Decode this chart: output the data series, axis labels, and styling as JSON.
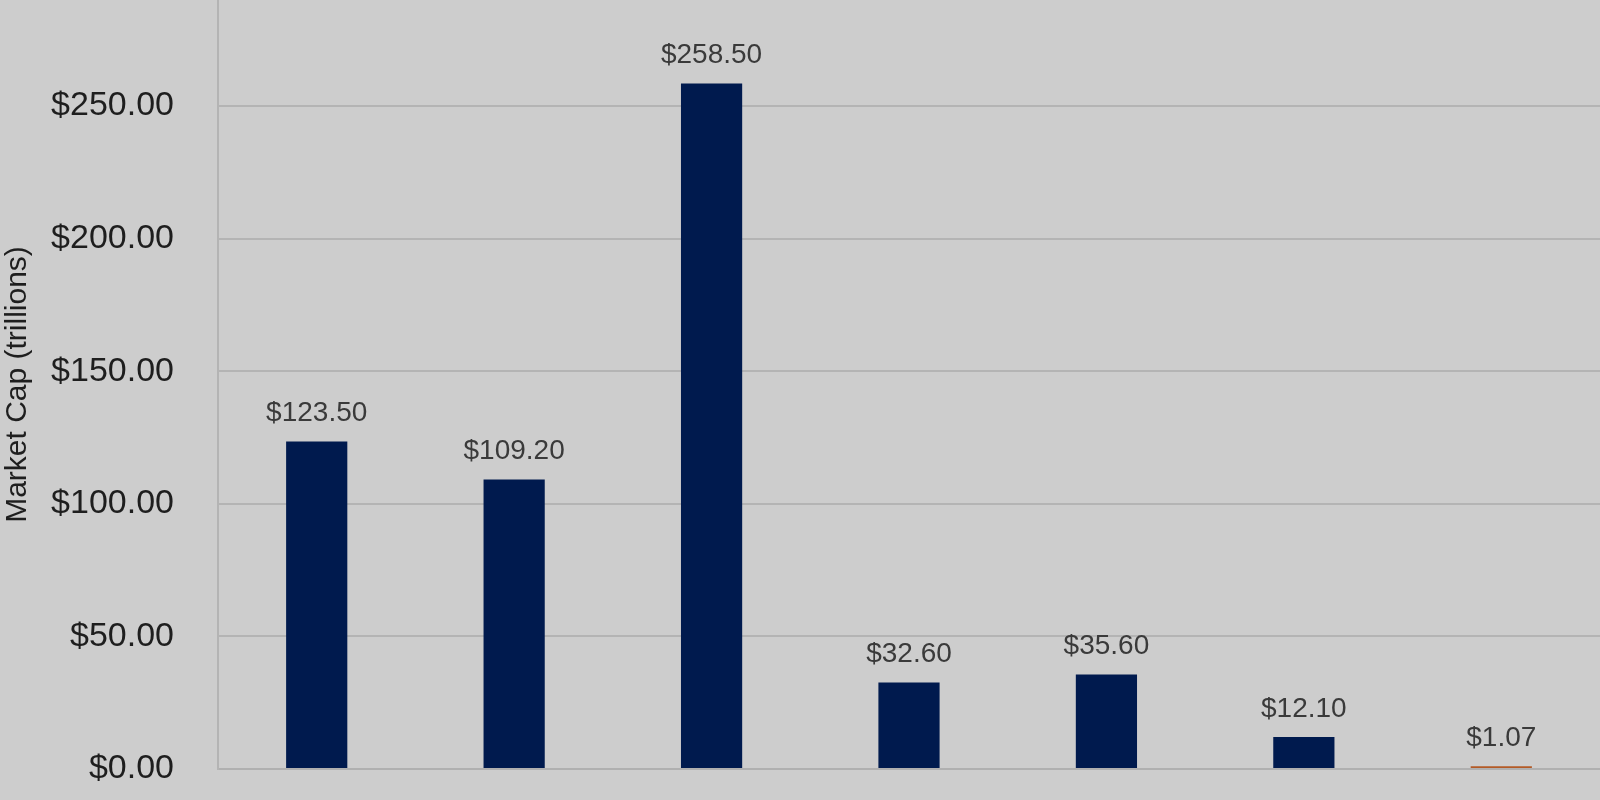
{
  "chart_data": {
    "type": "bar",
    "ylabel": "Market Cap (trillions)",
    "categories": [
      null,
      null,
      null,
      null,
      null,
      null,
      null
    ],
    "values": [
      123.5,
      109.2,
      258.5,
      32.6,
      35.6,
      12.1,
      1.07
    ],
    "colors": [
      "#001a4e",
      "#001a4e",
      "#001a4e",
      "#001a4e",
      "#001a4e",
      "#001a4e",
      "#b35a26"
    ],
    "value_labels": [
      "$123.50",
      "$109.20",
      "$258.50",
      "$32.60",
      "$35.60",
      "$12.10",
      "$1.07"
    ],
    "ylim": [
      0,
      290
    ],
    "yticks": [
      {
        "value": 0,
        "label": "$0.00"
      },
      {
        "value": 50,
        "label": "$50.00"
      },
      {
        "value": 100,
        "label": "$100.00"
      },
      {
        "value": 150,
        "label": "$150.00"
      },
      {
        "value": 200,
        "label": "$200.00"
      },
      {
        "value": 250,
        "label": "$250.00"
      }
    ],
    "grid": "y",
    "tick_labels": "y"
  }
}
